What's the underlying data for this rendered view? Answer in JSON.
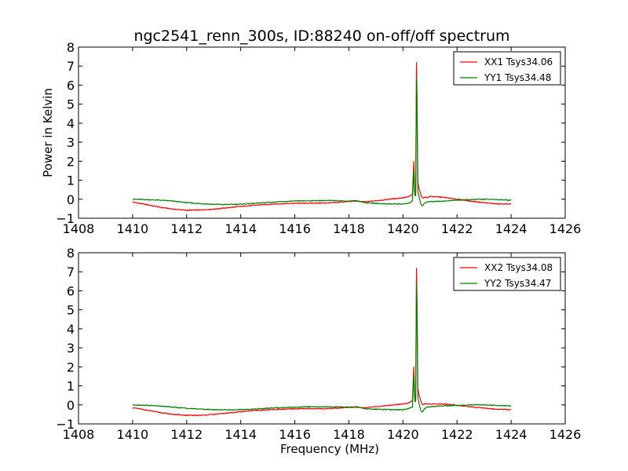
{
  "figure": {
    "title": "ngc2541_renn_300s, ID:88240 on-off/off spectrum",
    "background": "#ffffff"
  },
  "chart_data": [
    {
      "type": "line",
      "ylabel": "Power in Kelvin",
      "xlabel": "",
      "xlim": [
        1408,
        1426
      ],
      "ylim": [
        -1,
        8
      ],
      "xticks": [
        1408,
        1410,
        1412,
        1414,
        1416,
        1418,
        1420,
        1422,
        1424,
        1426
      ],
      "yticks": [
        -1,
        0,
        1,
        2,
        3,
        4,
        5,
        6,
        7,
        8
      ],
      "grid": false,
      "legend_position": "top-right",
      "series": [
        {
          "name": "XX1 Tsys34.06",
          "color": "#ff0000",
          "x": [
            1410,
            1410.5,
            1411,
            1411.5,
            1412,
            1412.5,
            1413,
            1413.5,
            1414,
            1414.5,
            1415,
            1415.5,
            1416,
            1416.5,
            1417,
            1417.5,
            1418,
            1418.3,
            1418.6,
            1419,
            1419.5,
            1420,
            1420.2,
            1420.35,
            1420.4,
            1420.44,
            1420.47,
            1420.5,
            1420.52,
            1420.55,
            1420.6,
            1420.65,
            1420.7,
            1420.75,
            1420.8,
            1420.9,
            1421,
            1421.5,
            1422,
            1422.5,
            1423,
            1423.5,
            1424
          ],
          "y": [
            -0.15,
            -0.28,
            -0.42,
            -0.52,
            -0.58,
            -0.57,
            -0.52,
            -0.45,
            -0.38,
            -0.32,
            -0.27,
            -0.24,
            -0.22,
            -0.21,
            -0.2,
            -0.18,
            -0.12,
            -0.1,
            -0.14,
            -0.08,
            0.0,
            0.08,
            0.12,
            0.25,
            2.0,
            0.3,
            0.3,
            7.2,
            5.6,
            0.9,
            0.55,
            0.3,
            0.1,
            0.05,
            0.12,
            0.08,
            0.15,
            0.1,
            0.0,
            -0.1,
            -0.18,
            -0.25,
            -0.25
          ]
        },
        {
          "name": "YY1 Tsys34.48",
          "color": "#008000",
          "x": [
            1410,
            1410.5,
            1411,
            1411.5,
            1412,
            1412.5,
            1413,
            1413.5,
            1414,
            1414.5,
            1415,
            1415.5,
            1416,
            1416.5,
            1417,
            1417.5,
            1418,
            1418.3,
            1418.6,
            1419,
            1419.5,
            1420,
            1420.2,
            1420.35,
            1420.4,
            1420.44,
            1420.47,
            1420.5,
            1420.52,
            1420.55,
            1420.6,
            1420.65,
            1420.7,
            1420.75,
            1420.8,
            1420.9,
            1421,
            1421.5,
            1422,
            1422.5,
            1423,
            1423.5,
            1424
          ],
          "y": [
            0.0,
            -0.02,
            -0.05,
            -0.1,
            -0.18,
            -0.23,
            -0.27,
            -0.28,
            -0.26,
            -0.22,
            -0.17,
            -0.13,
            -0.1,
            -0.08,
            -0.07,
            -0.07,
            -0.1,
            -0.08,
            -0.18,
            -0.22,
            -0.25,
            -0.25,
            -0.22,
            -0.1,
            1.5,
            0.2,
            0.2,
            6.4,
            4.8,
            0.4,
            0.1,
            -0.2,
            -0.35,
            -0.3,
            -0.2,
            -0.15,
            -0.12,
            -0.1,
            -0.05,
            -0.02,
            0.0,
            -0.02,
            -0.05
          ]
        }
      ]
    },
    {
      "type": "line",
      "ylabel": "",
      "xlabel": "Frequency (MHz)",
      "xlim": [
        1408,
        1426
      ],
      "ylim": [
        -1,
        8
      ],
      "xticks": [
        1408,
        1410,
        1412,
        1414,
        1416,
        1418,
        1420,
        1422,
        1424,
        1426
      ],
      "yticks": [
        -1,
        0,
        1,
        2,
        3,
        4,
        5,
        6,
        7,
        8
      ],
      "grid": false,
      "legend_position": "top-right",
      "series": [
        {
          "name": "XX2 Tsys34.08",
          "color": "#ff0000",
          "x": [
            1410,
            1410.5,
            1411,
            1411.5,
            1412,
            1412.5,
            1413,
            1413.5,
            1414,
            1414.5,
            1415,
            1415.5,
            1416,
            1416.5,
            1417,
            1417.5,
            1418,
            1418.3,
            1418.6,
            1419,
            1419.5,
            1420,
            1420.2,
            1420.35,
            1420.4,
            1420.44,
            1420.47,
            1420.5,
            1420.52,
            1420.55,
            1420.6,
            1420.65,
            1420.7,
            1420.75,
            1420.8,
            1420.9,
            1421,
            1421.5,
            1422,
            1422.5,
            1423,
            1423.5,
            1424
          ],
          "y": [
            -0.15,
            -0.27,
            -0.4,
            -0.5,
            -0.55,
            -0.55,
            -0.5,
            -0.43,
            -0.36,
            -0.3,
            -0.26,
            -0.23,
            -0.21,
            -0.2,
            -0.2,
            -0.18,
            -0.13,
            -0.12,
            -0.15,
            -0.1,
            -0.02,
            0.05,
            0.1,
            0.22,
            2.0,
            0.3,
            0.3,
            7.2,
            5.6,
            0.9,
            0.5,
            0.25,
            0.05,
            0.0,
            0.05,
            0.05,
            0.05,
            0.05,
            -0.02,
            -0.1,
            -0.17,
            -0.23,
            -0.25
          ]
        },
        {
          "name": "YY2 Tsys34.47",
          "color": "#008000",
          "x": [
            1410,
            1410.5,
            1411,
            1411.5,
            1412,
            1412.5,
            1413,
            1413.5,
            1414,
            1414.5,
            1415,
            1415.5,
            1416,
            1416.5,
            1417,
            1417.5,
            1418,
            1418.3,
            1418.6,
            1419,
            1419.5,
            1420,
            1420.2,
            1420.35,
            1420.4,
            1420.44,
            1420.47,
            1420.5,
            1420.52,
            1420.55,
            1420.6,
            1420.65,
            1420.7,
            1420.75,
            1420.8,
            1420.9,
            1421,
            1421.5,
            1422,
            1422.5,
            1423,
            1423.5,
            1424
          ],
          "y": [
            0.0,
            -0.02,
            -0.06,
            -0.12,
            -0.18,
            -0.22,
            -0.25,
            -0.26,
            -0.25,
            -0.22,
            -0.18,
            -0.14,
            -0.12,
            -0.1,
            -0.1,
            -0.1,
            -0.12,
            -0.1,
            -0.2,
            -0.23,
            -0.25,
            -0.25,
            -0.2,
            -0.1,
            1.5,
            0.2,
            0.2,
            6.4,
            4.8,
            0.4,
            0.05,
            -0.25,
            -0.4,
            -0.3,
            -0.2,
            -0.12,
            -0.1,
            -0.05,
            -0.03,
            0.0,
            0.0,
            -0.03,
            -0.05
          ]
        }
      ]
    }
  ]
}
